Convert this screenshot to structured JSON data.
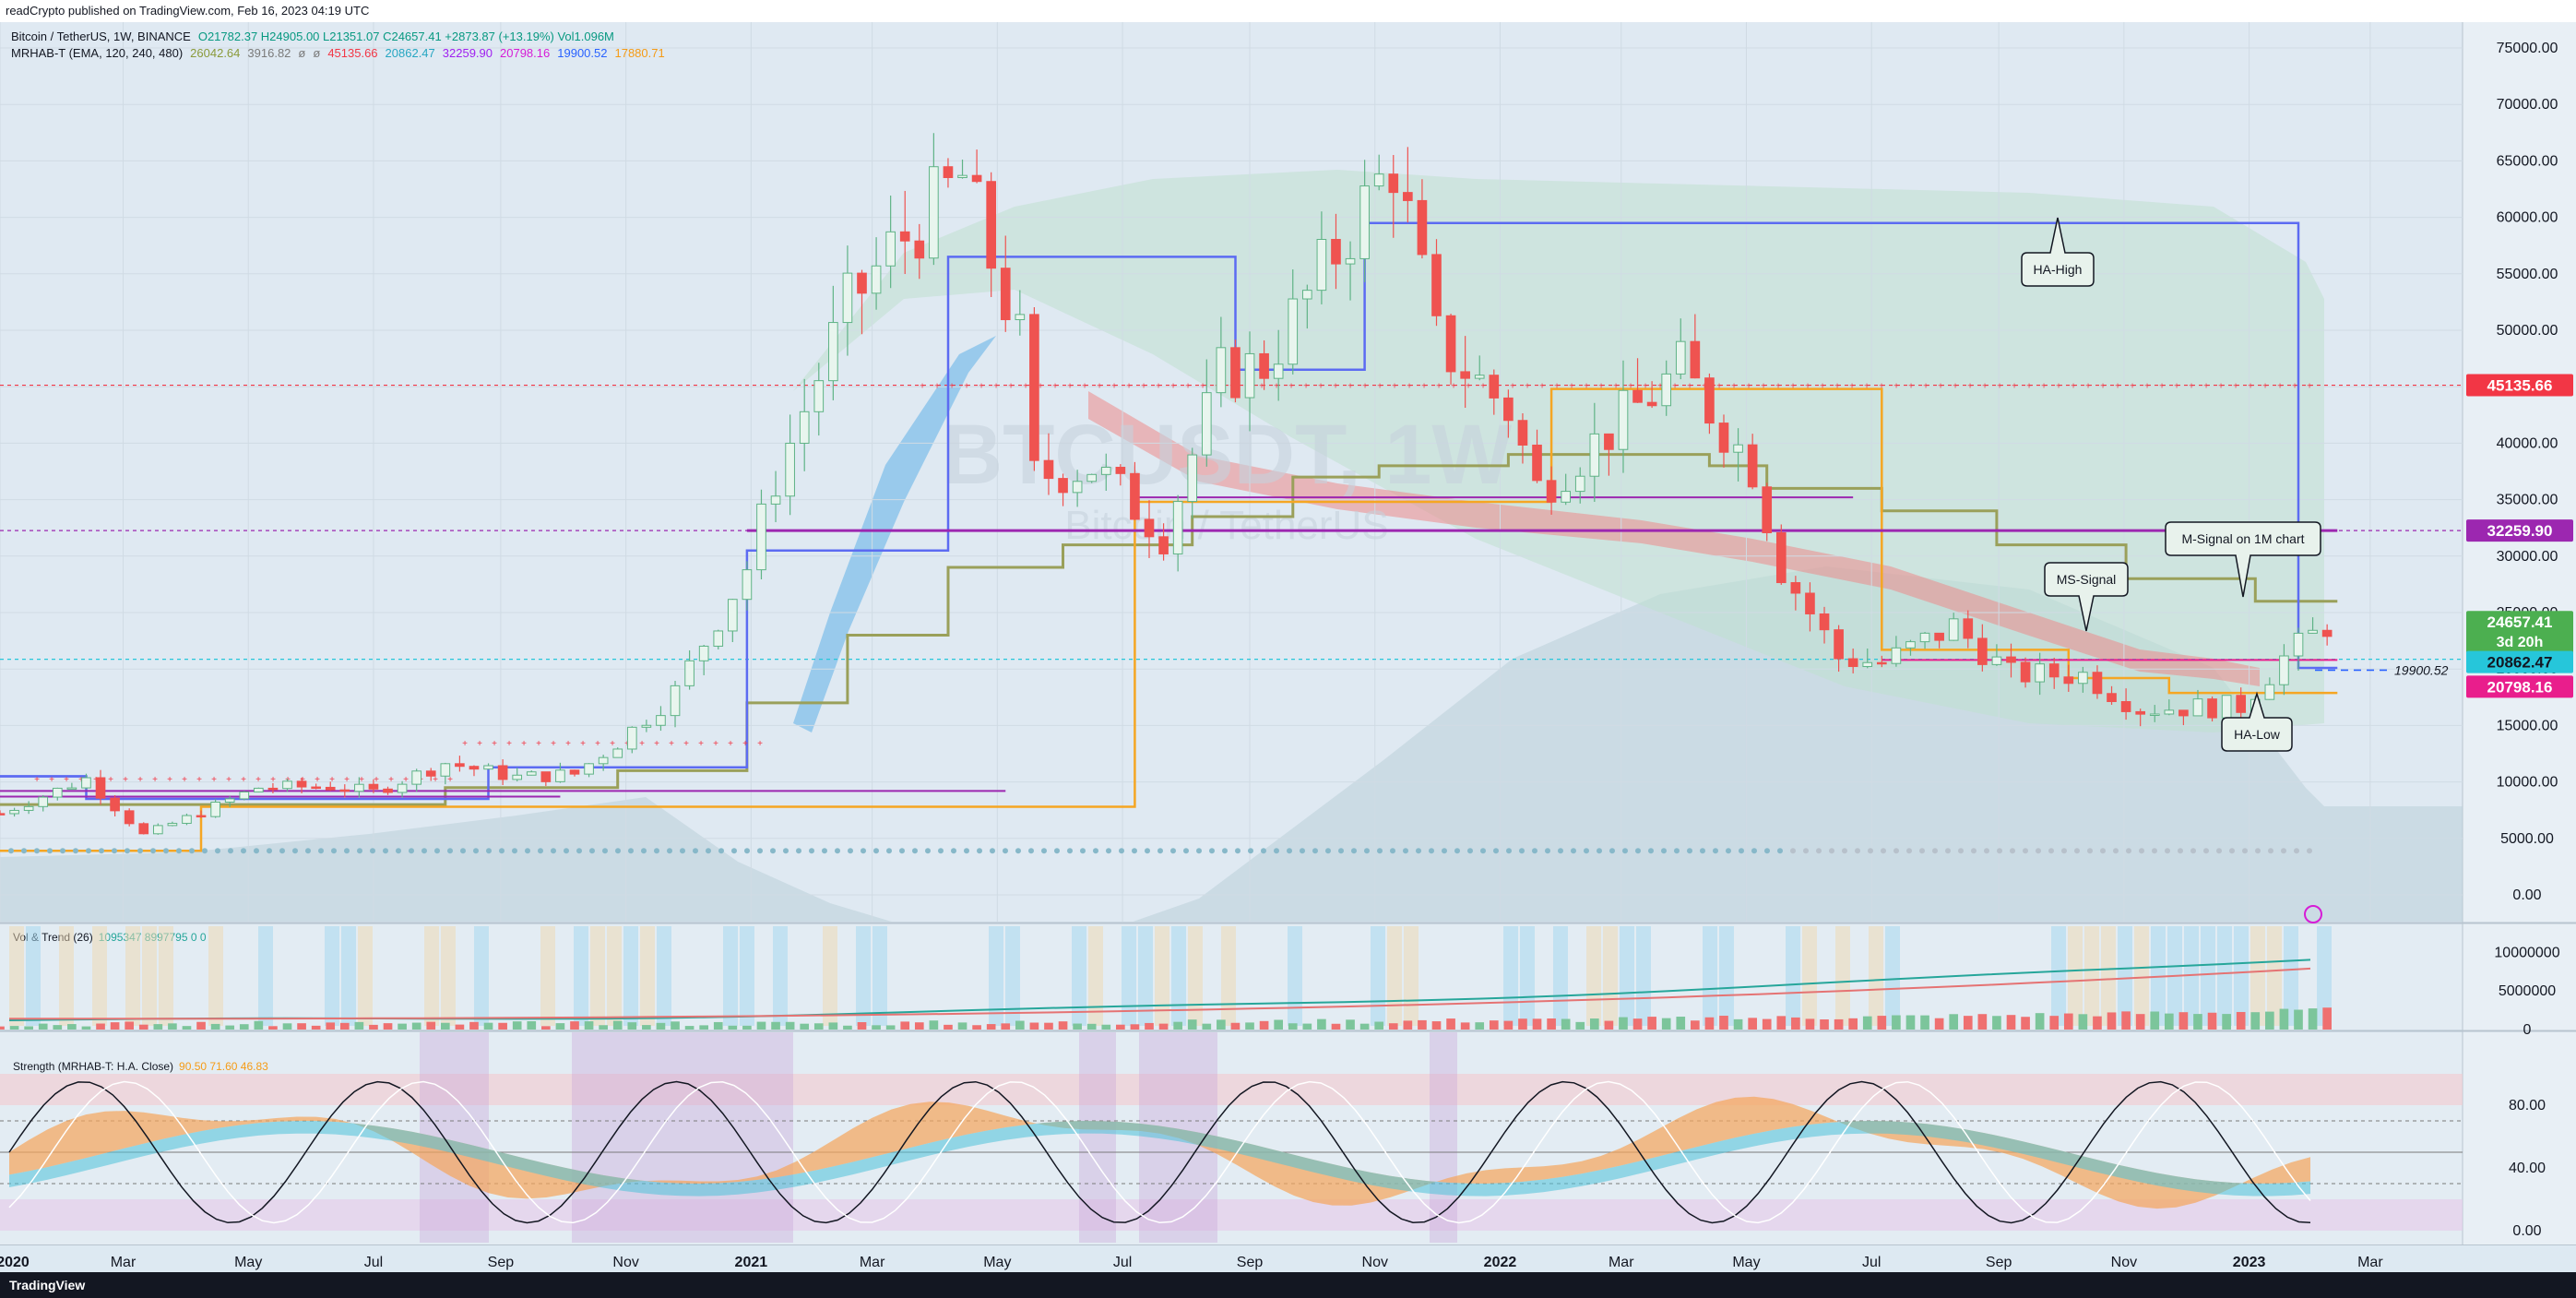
{
  "header": {
    "publish_line": "readCrypto published on TradingView.com, Feb 16, 2023 04:19 UTC"
  },
  "footer": {
    "brand": "TradingView"
  },
  "legend": {
    "symbol_line": "Bitcoin / TetherUS, 1W, BINANCE",
    "ohlc": "O21782.37 H24905.00 L21351.07 C24657.41 +2873.87 (+13.19%) Vol1.096M",
    "indicator_name": "MRHAB-T (EMA, 120, 240, 480)",
    "indicator_values": [
      "26042.64",
      "3916.82",
      "ø",
      "ø",
      "45135.66",
      "20862.47",
      "32259.90",
      "20798.16",
      "19900.52",
      "17880.71"
    ],
    "indicator_colors": [
      "#8a9a3a",
      "#7a7a7a",
      "#7a7a7a",
      "#7a7a7a",
      "#f23645",
      "#26a6c2",
      "#a020f0",
      "#d61cd6",
      "#2962ff",
      "#f59b16"
    ]
  },
  "watermark": {
    "symbol": "BTCUSDT, 1W",
    "name": "Bitcoin / TetherUS"
  },
  "price_axis": {
    "ticks": [
      "75000.00",
      "70000.00",
      "65000.00",
      "60000.00",
      "55000.00",
      "50000.00",
      "45000.00",
      "40000.00",
      "35000.00",
      "30000.00",
      "25000.00",
      "20000.00",
      "15000.00",
      "10000.00",
      "5000.00",
      "0.00"
    ]
  },
  "price_labels": [
    {
      "text": "45135.66",
      "bg": "#f23645",
      "color": "#ffffff"
    },
    {
      "text": "32259.90",
      "bg": "#9c27b0",
      "color": "#ffffff"
    },
    {
      "text": "24657.41",
      "sub": "3d 20h",
      "bg": "#4caf50",
      "color": "#ffffff"
    },
    {
      "text": "20862.47",
      "bg": "#26c6da",
      "color": "#131722"
    },
    {
      "text": "20798.16",
      "bg": "#e91e8c",
      "color": "#ffffff"
    }
  ],
  "dashed_level_label": "19900.52",
  "annotations": {
    "ha_high": "HA-High",
    "m_signal": "M-Signal on 1M chart",
    "ms_signal": "MS-Signal",
    "ha_low": "HA-Low"
  },
  "vol_panel": {
    "title": "Vol & Trend (26)",
    "values": [
      "1095347",
      "8997795",
      "0",
      "0"
    ],
    "ticks": [
      "10000000",
      "5000000",
      "0"
    ]
  },
  "strength_panel": {
    "title": "Strength (MRHAB-T: H.A. Close)",
    "values": [
      "90.50",
      "71.60",
      "46.83"
    ],
    "ticks": [
      "80.00",
      "40.00",
      "0.00"
    ]
  },
  "time_axis": {
    "labels": [
      "2020",
      "Mar",
      "May",
      "Jul",
      "Sep",
      "Nov",
      "2021",
      "Mar",
      "May",
      "Jul",
      "Sep",
      "Nov",
      "2022",
      "Mar",
      "May",
      "Jul",
      "Sep",
      "Nov",
      "2023",
      "Mar"
    ],
    "start": "2020-01-01",
    "end": "2023-04-15"
  },
  "colors": {
    "bull": "#5fb386",
    "bear": "#ef5350",
    "ha_high": "#5c6bf2",
    "ha_low": "#f5a623",
    "m_signal": "#9c27b0",
    "ms_signal": "#9aa05a",
    "resistance": "#f23645"
  },
  "chart_data": {
    "type": "candlestick",
    "title": "Bitcoin / TetherUS, 1W, BINANCE",
    "ylim": [
      0,
      77000
    ],
    "close_path": [
      {
        "date": "2020-01-01",
        "close": 7200
      },
      {
        "date": "2020-02-12",
        "close": 10300
      },
      {
        "date": "2020-03-11",
        "close": 5300
      },
      {
        "date": "2020-04-08",
        "close": 7300
      },
      {
        "date": "2020-05-06",
        "close": 9500
      },
      {
        "date": "2020-06-10",
        "close": 9600
      },
      {
        "date": "2020-07-01",
        "close": 9100
      },
      {
        "date": "2020-08-05",
        "close": 11700
      },
      {
        "date": "2020-09-09",
        "close": 10400
      },
      {
        "date": "2020-10-07",
        "close": 10700
      },
      {
        "date": "2020-10-28",
        "close": 13500
      },
      {
        "date": "2020-11-25",
        "close": 18000
      },
      {
        "date": "2020-12-30",
        "close": 29000
      },
      {
        "date": "2021-01-13",
        "close": 37000
      },
      {
        "date": "2021-02-17",
        "close": 52000
      },
      {
        "date": "2021-03-10",
        "close": 57000
      },
      {
        "date": "2021-04-14",
        "close": 63500
      },
      {
        "date": "2021-05-12",
        "close": 49000
      },
      {
        "date": "2021-05-19",
        "close": 37000
      },
      {
        "date": "2021-06-16",
        "close": 38000
      },
      {
        "date": "2021-07-21",
        "close": 32000
      },
      {
        "date": "2021-08-18",
        "close": 46000
      },
      {
        "date": "2021-09-08",
        "close": 47000
      },
      {
        "date": "2021-10-06",
        "close": 55000
      },
      {
        "date": "2021-11-10",
        "close": 65000
      },
      {
        "date": "2021-12-01",
        "close": 49000
      },
      {
        "date": "2022-01-05",
        "close": 43000
      },
      {
        "date": "2022-01-19",
        "close": 36000
      },
      {
        "date": "2022-02-16",
        "close": 40000
      },
      {
        "date": "2022-03-30",
        "close": 46500
      },
      {
        "date": "2022-05-04",
        "close": 38000
      },
      {
        "date": "2022-05-18",
        "close": 29000
      },
      {
        "date": "2022-06-15",
        "close": 21000
      },
      {
        "date": "2022-07-06",
        "close": 20500
      },
      {
        "date": "2022-08-10",
        "close": 23800
      },
      {
        "date": "2022-09-07",
        "close": 19500
      },
      {
        "date": "2022-10-12",
        "close": 19500
      },
      {
        "date": "2022-11-09",
        "close": 16500
      },
      {
        "date": "2022-12-28",
        "close": 16700
      },
      {
        "date": "2023-01-18",
        "close": 21000
      },
      {
        "date": "2023-02-13",
        "close": 24657
      }
    ],
    "levels": [
      {
        "name": "45135.66",
        "value": 45135.66
      },
      {
        "name": "32259.90",
        "value": 32259.9
      },
      {
        "name": "20862.47",
        "value": 20862.47
      },
      {
        "name": "20798.16",
        "value": 20798.16
      },
      {
        "name": "19900.52",
        "value": 19900.52
      }
    ],
    "ha_high_steps": [
      {
        "date": "2020-01-01",
        "value": 10500
      },
      {
        "date": "2020-02-12",
        "value": 10500
      },
      {
        "date": "2020-02-12",
        "value": 8500
      },
      {
        "date": "2020-08-26",
        "value": 8500
      },
      {
        "date": "2020-08-26",
        "value": 11300
      },
      {
        "date": "2020-12-30",
        "value": 11300
      },
      {
        "date": "2020-12-30",
        "value": 30500
      },
      {
        "date": "2021-04-07",
        "value": 30500
      },
      {
        "date": "2021-04-07",
        "value": 56500
      },
      {
        "date": "2021-08-25",
        "value": 56500
      },
      {
        "date": "2021-08-25",
        "value": 46500
      },
      {
        "date": "2021-10-27",
        "value": 46500
      },
      {
        "date": "2021-10-27",
        "value": 59500
      },
      {
        "date": "2023-01-25",
        "value": 59500
      },
      {
        "date": "2023-01-25",
        "value": 20100
      },
      {
        "date": "2023-02-13",
        "value": 20100
      }
    ],
    "ha_low_steps": [
      {
        "date": "2020-01-01",
        "value": 3900
      },
      {
        "date": "2020-04-08",
        "value": 3900
      },
      {
        "date": "2020-04-08",
        "value": 7800
      },
      {
        "date": "2021-07-07",
        "value": 7800
      },
      {
        "date": "2021-07-07",
        "value": 34800
      },
      {
        "date": "2022-01-26",
        "value": 34800
      },
      {
        "date": "2022-01-26",
        "value": 44800
      },
      {
        "date": "2022-07-06",
        "value": 44800
      },
      {
        "date": "2022-07-06",
        "value": 21700
      },
      {
        "date": "2022-10-05",
        "value": 21700
      },
      {
        "date": "2022-10-05",
        "value": 19200
      },
      {
        "date": "2022-11-23",
        "value": 19200
      },
      {
        "date": "2022-11-23",
        "value": 17880
      },
      {
        "date": "2023-02-13",
        "value": 17880
      }
    ],
    "ms_signal_steps": [
      {
        "date": "2020-01-01",
        "value": 8000
      },
      {
        "date": "2020-08-05",
        "value": 8000
      },
      {
        "date": "2020-08-05",
        "value": 9500
      },
      {
        "date": "2020-10-28",
        "value": 9500
      },
      {
        "date": "2020-10-28",
        "value": 11000
      },
      {
        "date": "2020-12-30",
        "value": 11000
      },
      {
        "date": "2020-12-30",
        "value": 17000
      },
      {
        "date": "2021-02-17",
        "value": 17000
      },
      {
        "date": "2021-02-17",
        "value": 23000
      },
      {
        "date": "2021-04-07",
        "value": 23000
      },
      {
        "date": "2021-04-07",
        "value": 29000
      },
      {
        "date": "2021-06-02",
        "value": 29000
      },
      {
        "date": "2021-06-02",
        "value": 31000
      },
      {
        "date": "2021-08-04",
        "value": 31000
      },
      {
        "date": "2021-08-04",
        "value": 33500
      },
      {
        "date": "2021-09-22",
        "value": 33500
      },
      {
        "date": "2021-09-22",
        "value": 37000
      },
      {
        "date": "2021-11-03",
        "value": 37000
      },
      {
        "date": "2021-11-03",
        "value": 38000
      },
      {
        "date": "2022-01-05",
        "value": 38000
      },
      {
        "date": "2022-01-05",
        "value": 39000
      },
      {
        "date": "2022-04-13",
        "value": 39000
      },
      {
        "date": "2022-04-13",
        "value": 38000
      },
      {
        "date": "2022-05-11",
        "value": 38000
      },
      {
        "date": "2022-05-11",
        "value": 36000
      },
      {
        "date": "2022-07-06",
        "value": 36000
      },
      {
        "date": "2022-07-06",
        "value": 34000
      },
      {
        "date": "2022-08-31",
        "value": 34000
      },
      {
        "date": "2022-08-31",
        "value": 31000
      },
      {
        "date": "2022-11-02",
        "value": 31000
      },
      {
        "date": "2022-11-02",
        "value": 28000
      },
      {
        "date": "2023-01-04",
        "value": 28000
      },
      {
        "date": "2023-01-04",
        "value": 26000
      },
      {
        "date": "2023-02-13",
        "value": 26000
      }
    ],
    "m_signal_segments": [
      {
        "from": "2020-01-01",
        "to": "2020-09-30",
        "value": 8700
      },
      {
        "from": "2020-01-01",
        "to": "2021-05-05",
        "value": 9200
      },
      {
        "from": "2021-07-07",
        "to": "2022-06-22",
        "value": 35200
      },
      {
        "from": "2020-12-30",
        "to": "2023-02-13",
        "value": 32259.9
      },
      {
        "from": "2022-07-06",
        "to": "2023-02-13",
        "value": 20798
      }
    ]
  }
}
